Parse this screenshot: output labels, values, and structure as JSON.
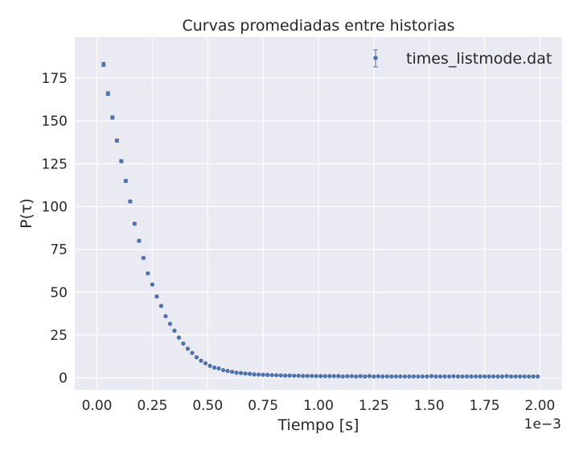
{
  "chart_data": {
    "type": "scatter",
    "title": "Curvas promediadas entre historias",
    "xlabel": "Tiempo [s]",
    "ylabel": "P(τ)",
    "x_offset_label": "1e−3",
    "x_scale_factor": 0.001,
    "xlim": [
      -0.1,
      2.1
    ],
    "ylim": [
      -7,
      199
    ],
    "x_ticks": [
      0.0,
      0.25,
      0.5,
      0.75,
      1.0,
      1.25,
      1.5,
      1.75,
      2.0
    ],
    "x_tick_labels": [
      "0.00",
      "0.25",
      "0.50",
      "0.75",
      "1.00",
      "1.25",
      "1.50",
      "1.75",
      "2.00"
    ],
    "y_ticks": [
      0,
      25,
      50,
      75,
      100,
      125,
      150,
      175
    ],
    "y_tick_labels": [
      "0",
      "25",
      "50",
      "75",
      "100",
      "125",
      "150",
      "175"
    ],
    "grid": true,
    "legend_position": "top-right",
    "series": [
      {
        "name": "times_listmode.dat",
        "color": "#4c72b0",
        "marker": "errorbar-dot",
        "x": [
          0.03,
          0.05,
          0.07,
          0.09,
          0.11,
          0.13,
          0.15,
          0.17,
          0.19,
          0.21,
          0.23,
          0.25,
          0.27,
          0.29,
          0.31,
          0.33,
          0.35,
          0.37,
          0.39,
          0.41,
          0.43,
          0.45,
          0.47,
          0.49,
          0.51,
          0.53,
          0.55,
          0.57,
          0.59,
          0.61,
          0.63,
          0.65,
          0.67,
          0.69,
          0.71,
          0.73,
          0.75,
          0.77,
          0.79,
          0.81,
          0.83,
          0.85,
          0.87,
          0.89,
          0.91,
          0.93,
          0.95,
          0.97,
          0.99,
          1.01,
          1.03,
          1.05,
          1.07,
          1.09,
          1.11,
          1.13,
          1.15,
          1.17,
          1.19,
          1.21,
          1.23,
          1.25,
          1.27,
          1.29,
          1.31,
          1.33,
          1.35,
          1.37,
          1.39,
          1.41,
          1.43,
          1.45,
          1.47,
          1.49,
          1.51,
          1.53,
          1.55,
          1.57,
          1.59,
          1.61,
          1.63,
          1.65,
          1.67,
          1.69,
          1.71,
          1.73,
          1.75,
          1.77,
          1.79,
          1.81,
          1.83,
          1.85,
          1.87,
          1.89,
          1.91,
          1.93,
          1.95,
          1.97,
          1.99
        ],
        "y": [
          183,
          166,
          152,
          138.5,
          126.5,
          115,
          103,
          90,
          80,
          70,
          61,
          54.5,
          47.5,
          42,
          36,
          31.5,
          27.5,
          23.5,
          20,
          17,
          14.5,
          12,
          10,
          8.5,
          7,
          6,
          5.5,
          4.5,
          4,
          3.5,
          3,
          2.8,
          2.5,
          2.3,
          2,
          1.9,
          1.8,
          1.7,
          1.6,
          1.5,
          1.4,
          1.3,
          1.3,
          1.2,
          1.2,
          1.1,
          1.1,
          1.1,
          1.0,
          1.0,
          1.0,
          1.0,
          1.0,
          1.0,
          0.8,
          0.9,
          1.0,
          0.8,
          1.0,
          0.8,
          1.0,
          0.8,
          0.9,
          0.8,
          0.8,
          0.8,
          0.8,
          0.8,
          0.8,
          0.8,
          0.8,
          0.8,
          0.8,
          0.8,
          1.0,
          0.8,
          0.8,
          0.8,
          0.8,
          0.9,
          0.8,
          0.8,
          0.8,
          0.8,
          0.8,
          0.8,
          0.8,
          0.8,
          0.8,
          0.8,
          0.8,
          1.0,
          0.8,
          0.8,
          0.8,
          0.8,
          0.8,
          0.8,
          0.8
        ],
        "yerr": [
          1.2,
          1.1,
          1.0,
          0.9,
          0.9,
          0.8,
          0.8,
          0.7,
          0.7,
          0.6,
          0.6,
          0.5,
          0.5,
          0.5,
          0.4,
          0.4,
          0.4,
          0.4,
          0.3,
          0.3,
          0.3,
          0.3,
          0.3,
          0.3,
          0.2,
          0.2,
          0.2,
          0.2,
          0.2,
          0.2,
          0.2,
          0.2,
          0.2,
          0.2,
          0.1,
          0.1,
          0.1,
          0.1,
          0.1,
          0.1,
          0.1,
          0.1,
          0.1,
          0.1,
          0.1,
          0.1,
          0.1,
          0.1,
          0.1,
          0.1,
          0.1,
          0.1,
          0.1,
          0.1,
          0.1,
          0.1,
          0.1,
          0.1,
          0.1,
          0.1,
          0.1,
          0.1,
          0.1,
          0.1,
          0.1,
          0.1,
          0.1,
          0.1,
          0.1,
          0.1,
          0.1,
          0.1,
          0.1,
          0.1,
          0.1,
          0.1,
          0.1,
          0.1,
          0.1,
          0.1,
          0.1,
          0.1,
          0.1,
          0.1,
          0.1,
          0.1,
          0.1,
          0.1,
          0.1,
          0.1,
          0.1,
          0.1,
          0.1,
          0.1,
          0.1,
          0.1,
          0.1,
          0.1,
          0.1
        ]
      }
    ]
  }
}
